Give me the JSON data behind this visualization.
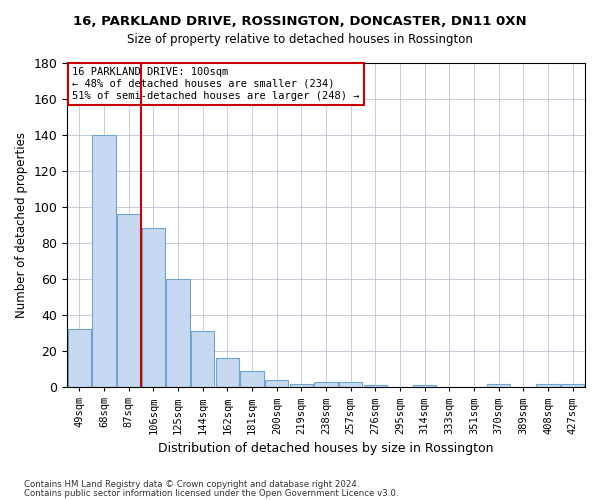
{
  "title": "16, PARKLAND DRIVE, ROSSINGTON, DONCASTER, DN11 0XN",
  "subtitle": "Size of property relative to detached houses in Rossington",
  "xlabel": "Distribution of detached houses by size in Rossington",
  "ylabel": "Number of detached properties",
  "categories": [
    "49sqm",
    "68sqm",
    "87sqm",
    "106sqm",
    "125sqm",
    "144sqm",
    "162sqm",
    "181sqm",
    "200sqm",
    "219sqm",
    "238sqm",
    "257sqm",
    "276sqm",
    "295sqm",
    "314sqm",
    "333sqm",
    "351sqm",
    "370sqm",
    "389sqm",
    "408sqm",
    "427sqm"
  ],
  "values": [
    32,
    140,
    96,
    88,
    60,
    31,
    16,
    9,
    4,
    2,
    3,
    3,
    1,
    0,
    1,
    0,
    0,
    2,
    0,
    2,
    2
  ],
  "bar_color": "#c6d9f0",
  "bar_edge_color": "#6ea6d0",
  "grid_color": "#b0b8d0",
  "background_color": "#ffffff",
  "annotation_text": "16 PARKLAND DRIVE: 100sqm\n← 48% of detached houses are smaller (234)\n51% of semi-detached houses are larger (248) →",
  "annotation_box_edge": "#cc0000",
  "vline_color": "#cc0000",
  "vline_x": 2.5,
  "ylim": [
    0,
    180
  ],
  "yticks": [
    0,
    20,
    40,
    60,
    80,
    100,
    120,
    140,
    160,
    180
  ],
  "footer_line1": "Contains HM Land Registry data © Crown copyright and database right 2024.",
  "footer_line2": "Contains public sector information licensed under the Open Government Licence v3.0."
}
